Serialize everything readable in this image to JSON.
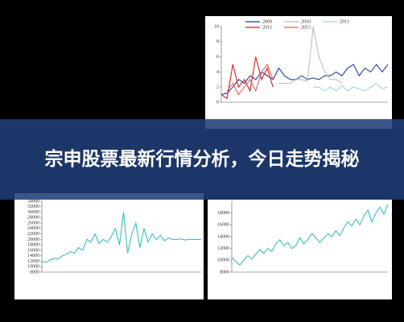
{
  "banner": {
    "title": "宗申股票最新行情分析，今日走势揭秘"
  },
  "chart_data": [
    {
      "type": "line",
      "ylim": [
        0,
        10
      ],
      "yticks": [
        0,
        2,
        4,
        6,
        8,
        10
      ],
      "series": [
        {
          "name": "2009",
          "color": "#1f3fa0",
          "values": [
            1,
            1.2,
            2,
            3,
            2.5,
            3.5,
            3,
            4,
            3.5,
            3,
            4.5,
            3.5,
            3,
            3,
            3.5,
            3,
            3.2,
            3,
            3.5,
            3.5,
            4,
            3.5,
            4.5,
            5,
            3.5,
            4.5,
            4,
            5,
            4,
            5
          ]
        },
        {
          "name": "2010",
          "color": "#bbbbbb",
          "values": [
            null,
            null,
            null,
            null,
            null,
            null,
            null,
            null,
            null,
            null,
            2.5,
            2.5,
            2.5,
            3,
            3,
            2.8,
            10,
            6,
            4,
            3,
            3,
            2.5,
            null,
            null,
            null,
            null,
            null,
            null,
            null,
            null
          ]
        },
        {
          "name": "2011",
          "color": "#9fd3ee",
          "values": [
            null,
            null,
            null,
            null,
            null,
            null,
            null,
            null,
            null,
            null,
            null,
            null,
            null,
            null,
            null,
            null,
            2,
            2,
            1.5,
            2,
            1.5,
            2.2,
            1.5,
            2,
            1.8,
            1.5,
            2,
            2.5,
            1.8,
            2
          ]
        },
        {
          "name": "2012",
          "color": "#d62020",
          "values": [
            1,
            0.5,
            5,
            2,
            3,
            1.5,
            6,
            3,
            4.5,
            2,
            null,
            null,
            null,
            null,
            null,
            null,
            null,
            null,
            null,
            null,
            null,
            null,
            null,
            null,
            null,
            null,
            null,
            null,
            null,
            null
          ]
        },
        {
          "name": "2013",
          "color": "#e06060",
          "values": [
            null,
            1.5,
            2.5,
            1,
            2,
            3,
            1.5,
            4,
            5,
            3,
            null,
            null,
            null,
            null,
            null,
            null,
            null,
            null,
            null,
            null,
            null,
            null,
            null,
            null,
            null,
            null,
            null,
            null,
            null,
            null
          ]
        }
      ]
    },
    {
      "type": "line",
      "ylim": [
        8000,
        34000
      ],
      "yticks": [
        8000,
        10000,
        12000,
        14000,
        16000,
        18000,
        20000,
        22000,
        24000,
        26000,
        28000,
        30000,
        32000,
        34000
      ],
      "series": [
        {
          "name": null,
          "color": "#3bbdc2",
          "values": [
            12000,
            11500,
            12500,
            13000,
            12800,
            14000,
            14500,
            15500,
            15000,
            17000,
            16000,
            20000,
            19000,
            22000,
            18500,
            20000,
            19000,
            21000,
            24000,
            18000,
            30000,
            15000,
            22000,
            26000,
            17000,
            24000,
            19000,
            22000,
            20000,
            21500,
            19500,
            20500,
            20000,
            20000,
            20200,
            19800,
            20000,
            20000,
            20000,
            20000
          ]
        }
      ]
    },
    {
      "type": "line",
      "ylim": [
        8000,
        20000
      ],
      "yticks": [
        8000,
        10000,
        12000,
        14000,
        16000,
        18000
      ],
      "series": [
        {
          "name": null,
          "color": "#3bbdc2",
          "values": [
            10500,
            9800,
            9200,
            10000,
            10800,
            10200,
            11000,
            11800,
            11200,
            12000,
            11500,
            12800,
            13500,
            12500,
            13000,
            12000,
            12500,
            13800,
            12800,
            13500,
            14500,
            13800,
            13000,
            13800,
            14500,
            14000,
            15000,
            14200,
            15500,
            16500,
            15800,
            17000,
            16000,
            17500,
            18500,
            16500,
            18000,
            19000,
            17800,
            19500
          ]
        }
      ]
    }
  ]
}
